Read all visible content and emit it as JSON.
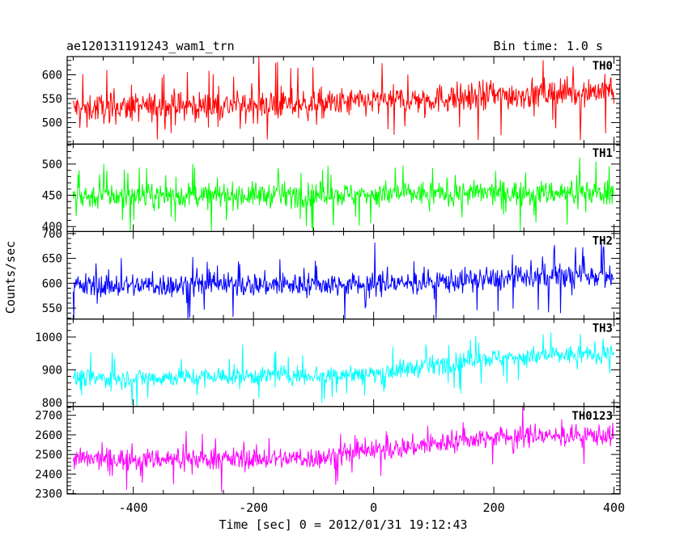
{
  "chart_data": {
    "type": "line",
    "title_left": "ae120131191243_wam1_trn",
    "title_right": "Bin time: 1.0 s",
    "xlabel": "Time [sec] 0 = 2012/01/31 19:12:43",
    "ylabel": "Counts/sec",
    "xlim": [
      -510,
      410
    ],
    "xticks": [
      -400,
      -200,
      0,
      200,
      400
    ],
    "panels": [
      {
        "name": "TH0",
        "color": "#ff0000",
        "ylim": [
          455,
          638
        ],
        "yticks": [
          500,
          550,
          600
        ],
        "trend": [
          [
            -500,
            530
          ],
          [
            -100,
            538
          ],
          [
            400,
            568
          ]
        ],
        "noise": 28,
        "spike": 70
      },
      {
        "name": "TH1",
        "color": "#00ff00",
        "ylim": [
          392,
          532
        ],
        "yticks": [
          400,
          450,
          500
        ],
        "trend": [
          [
            -500,
            448
          ],
          [
            400,
            455
          ]
        ],
        "noise": 18,
        "spike": 48
      },
      {
        "name": "TH2",
        "color": "#0000ff",
        "ylim": [
          528,
          704
        ],
        "yticks": [
          550,
          600,
          650,
          700
        ],
        "trend": [
          [
            -500,
            595
          ],
          [
            0,
            598
          ],
          [
            400,
            618
          ]
        ],
        "noise": 22,
        "spike": 62
      },
      {
        "name": "TH3",
        "color": "#00ffff",
        "ylim": [
          788,
          1055
        ],
        "yticks": [
          800,
          900,
          1000
        ],
        "trend": [
          [
            -500,
            872
          ],
          [
            0,
            888
          ],
          [
            180,
            935
          ],
          [
            400,
            950
          ]
        ],
        "noise": 27,
        "spike": 75
      },
      {
        "name": "TH0123",
        "color": "#ff00ff",
        "ylim": [
          2298,
          2745
        ],
        "yticks": [
          2300,
          2400,
          2500,
          2600,
          2700
        ],
        "trend": [
          [
            -500,
            2475
          ],
          [
            -100,
            2480
          ],
          [
            200,
            2590
          ],
          [
            400,
            2600
          ]
        ],
        "noise": 50,
        "spike": 120
      }
    ]
  }
}
